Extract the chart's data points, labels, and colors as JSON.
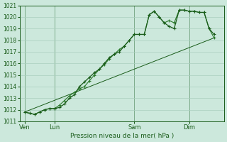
{
  "xlabel": "Pression niveau de la mer( hPa )",
  "ylim": [
    1011,
    1021
  ],
  "yticks": [
    1011,
    1012,
    1013,
    1014,
    1015,
    1016,
    1017,
    1018,
    1019,
    1020,
    1021
  ],
  "bg_color": "#cce8dc",
  "grid_color": "#aacfbe",
  "line_color_dark": "#1a5c1a",
  "line_color_mid": "#2a7a2a",
  "day_labels": [
    "Ven",
    "Lun",
    "Sam",
    "Dim"
  ],
  "day_positions": [
    0,
    6,
    22,
    33
  ],
  "xlim": [
    -1,
    40
  ],
  "series1_x": [
    0,
    1,
    2,
    3,
    4,
    5,
    6,
    7,
    8,
    9,
    10,
    11,
    12,
    13,
    14,
    15,
    16,
    17,
    18,
    19,
    20,
    21,
    22,
    23,
    24,
    25,
    26,
    27,
    28,
    29,
    30,
    31,
    32,
    33,
    34,
    35,
    36,
    37,
    38
  ],
  "series1_y": [
    1011.8,
    1011.7,
    1011.6,
    1011.8,
    1012.0,
    1012.1,
    1012.1,
    1012.2,
    1012.5,
    1013.0,
    1013.3,
    1014.0,
    1014.4,
    1014.8,
    1015.2,
    1015.5,
    1016.0,
    1016.5,
    1016.8,
    1017.0,
    1017.5,
    1018.0,
    1018.5,
    1018.5,
    1018.5,
    1020.2,
    1020.5,
    1020.0,
    1019.5,
    1019.2,
    1019.0,
    1020.6,
    1020.6,
    1020.5,
    1020.5,
    1020.4,
    1020.4,
    1019.0,
    1018.5
  ],
  "series2_x": [
    0,
    1,
    2,
    3,
    4,
    5,
    6,
    7,
    8,
    9,
    10,
    11,
    12,
    13,
    14,
    15,
    16,
    17,
    18,
    19,
    20,
    21,
    22,
    23,
    24,
    25,
    26,
    27,
    28,
    29,
    30,
    31,
    32,
    33,
    34,
    35,
    36,
    37,
    38
  ],
  "series2_y": [
    1011.8,
    1011.7,
    1011.6,
    1011.8,
    1012.0,
    1012.1,
    1012.1,
    1012.4,
    1012.8,
    1013.2,
    1013.5,
    1013.8,
    1014.0,
    1014.5,
    1015.0,
    1015.5,
    1015.9,
    1016.4,
    1016.8,
    1017.2,
    1017.5,
    1018.0,
    1018.5,
    1018.5,
    1018.5,
    1020.2,
    1020.5,
    1020.0,
    1019.5,
    1019.7,
    1019.5,
    1020.6,
    1020.6,
    1020.5,
    1020.5,
    1020.4,
    1020.4,
    1019.0,
    1018.2
  ],
  "series3_x": [
    0,
    38
  ],
  "series3_y": [
    1011.8,
    1018.2
  ]
}
